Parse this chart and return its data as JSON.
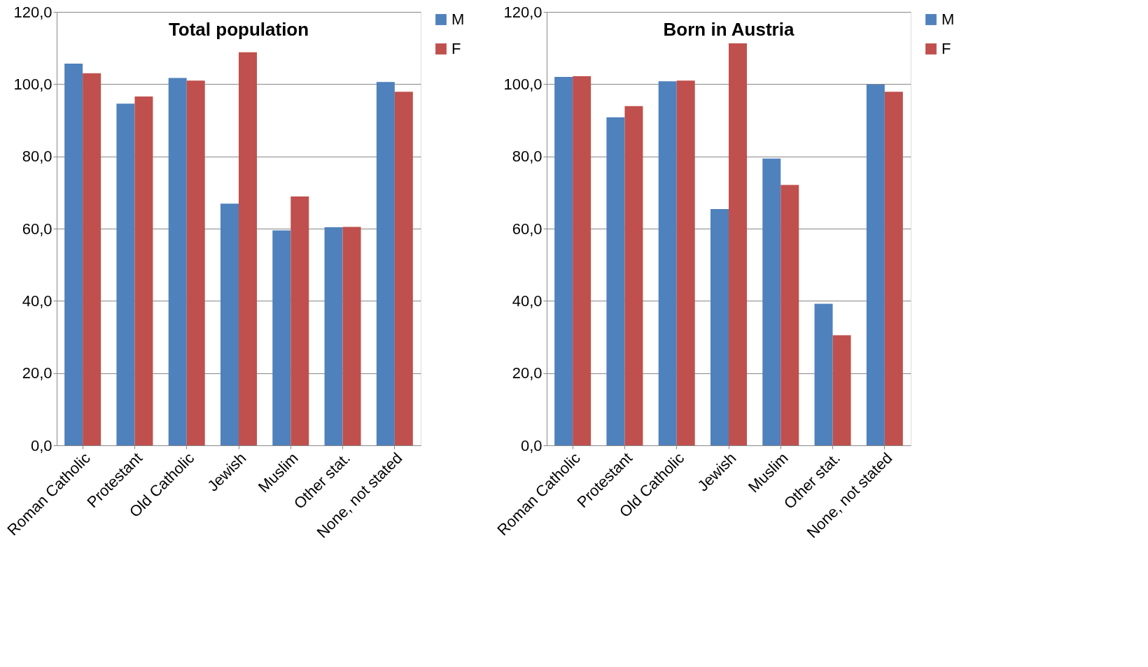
{
  "chart_data": [
    {
      "type": "bar",
      "title": "Total population",
      "categories": [
        "Roman Catholic",
        "Protestant",
        "Old Catholic",
        "Jewish",
        "Muslim",
        "Other stat.",
        "None, not stated"
      ],
      "series": [
        {
          "name": "M",
          "color": "#4f81bd",
          "values": [
            105.7,
            94.6,
            101.7,
            66.9,
            59.5,
            60.4,
            100.6
          ]
        },
        {
          "name": "F",
          "color": "#c0504d",
          "values": [
            103.0,
            96.6,
            101.0,
            108.8,
            68.9,
            60.5,
            97.9
          ]
        }
      ],
      "ylim": [
        0,
        120
      ],
      "yticks": [
        {
          "value": 0,
          "label": "0,0"
        },
        {
          "value": 20,
          "label": "20,0"
        },
        {
          "value": 40,
          "label": "40,0"
        },
        {
          "value": 60,
          "label": "60,0"
        },
        {
          "value": 80,
          "label": "80,0"
        },
        {
          "value": 100,
          "label": "100,0"
        },
        {
          "value": 120,
          "label": "120,0"
        }
      ],
      "grid": "y",
      "legend": "right"
    },
    {
      "type": "bar",
      "title": "Born in Austria",
      "categories": [
        "Roman Catholic",
        "Protestant",
        "Old Catholic",
        "Jewish",
        "Muslim",
        "Other stat.",
        "None, not stated"
      ],
      "series": [
        {
          "name": "M",
          "color": "#4f81bd",
          "values": [
            102.0,
            90.8,
            100.8,
            65.4,
            79.4,
            39.2,
            99.9
          ]
        },
        {
          "name": "F",
          "color": "#c0504d",
          "values": [
            102.2,
            93.9,
            101.0,
            111.3,
            72.1,
            30.5,
            97.9
          ]
        }
      ],
      "ylim": [
        0,
        120
      ],
      "yticks": [
        {
          "value": 0,
          "label": "0,0"
        },
        {
          "value": 20,
          "label": "20,0"
        },
        {
          "value": 40,
          "label": "40,0"
        },
        {
          "value": 60,
          "label": "60,0"
        },
        {
          "value": 80,
          "label": "80,0"
        },
        {
          "value": 100,
          "label": "100,0"
        },
        {
          "value": 120,
          "label": "120,0"
        }
      ],
      "grid": "y",
      "legend": "right"
    }
  ]
}
